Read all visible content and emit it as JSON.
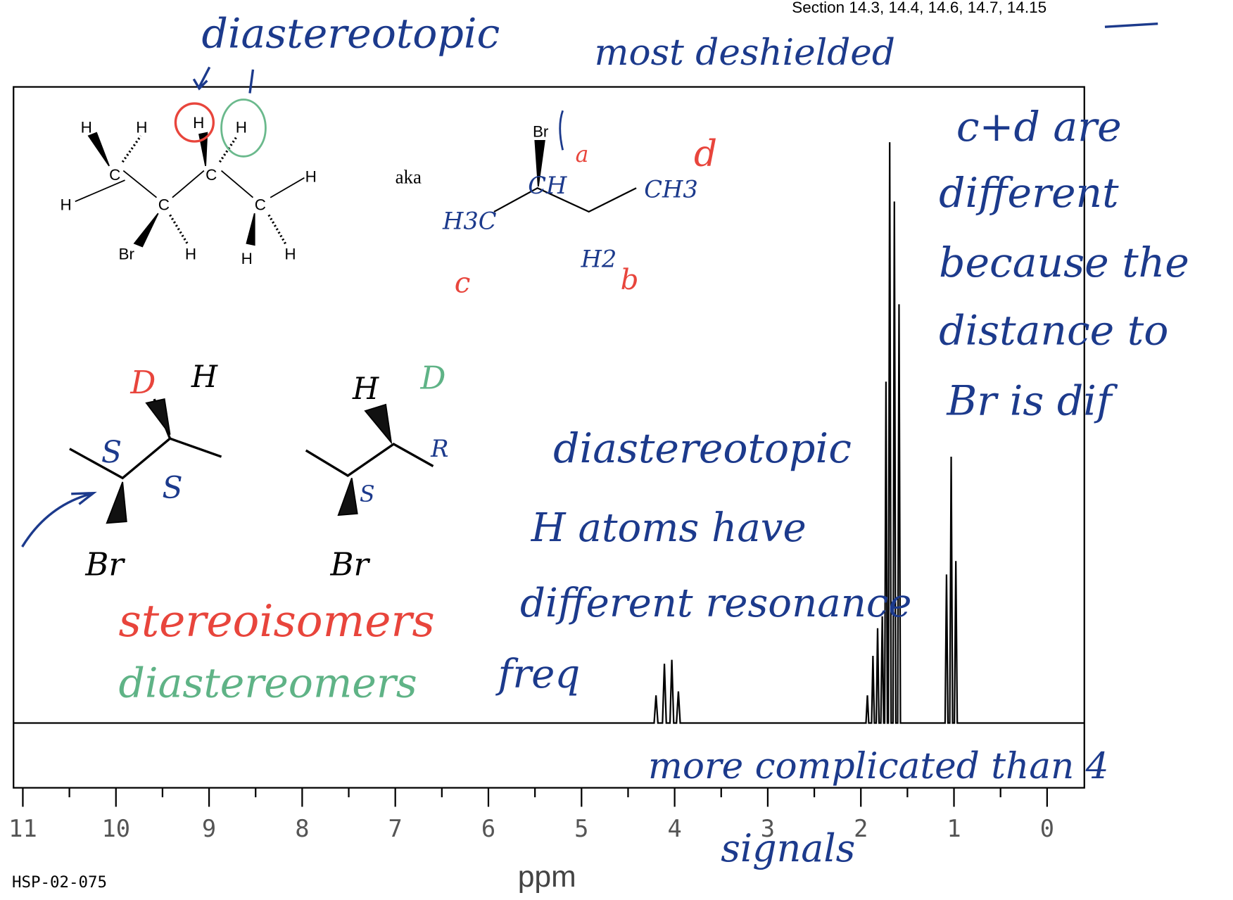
{
  "header": "Section 14.3, 14.4, 14.6, 14.7, 14.15",
  "chart_data": {
    "type": "line",
    "x_label": "ppm",
    "code": "HSP-02-075",
    "xlim": [
      11.1,
      -0.4
    ],
    "ylim": [
      -82,
      805
    ],
    "xticks": [
      11,
      10,
      9,
      8,
      7,
      6,
      5,
      4,
      3,
      2,
      1,
      0
    ],
    "color": "#000000",
    "x": [
      11.1,
      4.22,
      4.2,
      4.18,
      4.13,
      4.11,
      4.09,
      4.05,
      4.03,
      4.01,
      3.98,
      3.96,
      3.94,
      1.945,
      1.93,
      1.915,
      1.885,
      1.87,
      1.855,
      1.835,
      1.82,
      1.805,
      1.785,
      1.77,
      1.755,
      1.745,
      1.73,
      1.715,
      1.705,
      1.69,
      1.675,
      1.655,
      1.64,
      1.625,
      1.605,
      1.59,
      1.575,
      1.095,
      1.08,
      1.065,
      1.045,
      1.03,
      1.015,
      0.995,
      0.98,
      0.965,
      -0.4
    ],
    "values": [
      0,
      0,
      35,
      0,
      0,
      75,
      0,
      0,
      80,
      0,
      0,
      40,
      0,
      0,
      35,
      0,
      0,
      85,
      0,
      0,
      120,
      0,
      0,
      135,
      0,
      0,
      432,
      0,
      0,
      735,
      0,
      0,
      660,
      0,
      0,
      530,
      0,
      0,
      188,
      0,
      0,
      337,
      0,
      0,
      205,
      0,
      0
    ]
  },
  "molecule": {
    "atoms": [
      "H",
      "H",
      "H",
      "H",
      "C",
      "H",
      "C",
      "H",
      "C",
      "C",
      "Br",
      "H",
      "H",
      "H"
    ],
    "aka": "aka",
    "skeleton_labels": [
      "Br",
      "a",
      "CH",
      "d",
      "CH3",
      "H3C",
      "H2",
      "b",
      "c"
    ]
  },
  "stereo_labels": [
    "D",
    "H",
    "S",
    "S",
    "Br",
    "H",
    "D",
    "R",
    "S",
    "Br"
  ],
  "notes": [
    "diastereotopic",
    "most deshielded",
    "c+d are",
    "different",
    "because the",
    "distance to",
    "Br is dif",
    "diastereotopic",
    "H atoms have",
    "different resonance",
    "freq",
    "stereoisomers",
    "diastereomers",
    "more complicated than 4",
    "signals"
  ]
}
